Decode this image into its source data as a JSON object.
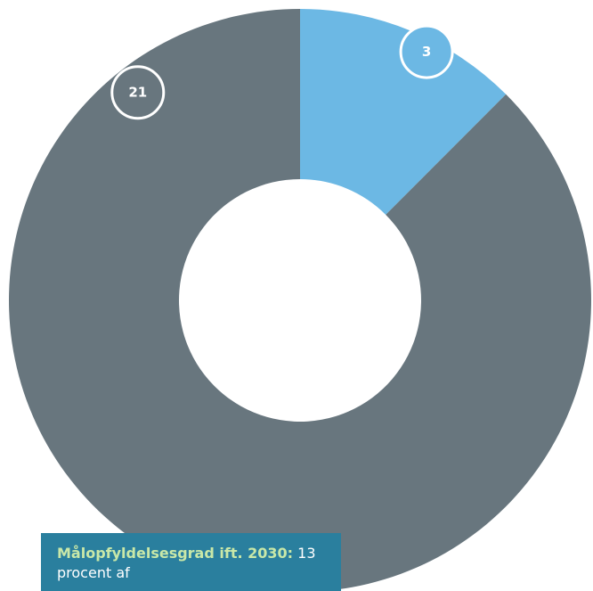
{
  "chart_data": {
    "type": "pie",
    "style": "donut",
    "slices": [
      {
        "label": "3",
        "value": 3,
        "color": "#6cb8e4"
      },
      {
        "label": "21",
        "value": 21,
        "color": "#68767e"
      }
    ],
    "start_angle_deg": 0,
    "direction": "clockwise",
    "grid": false,
    "legend": "none"
  },
  "note": {
    "lead": "Målopfyldelsesgrad ift. 2030:",
    "text": " 13 procent af"
  }
}
